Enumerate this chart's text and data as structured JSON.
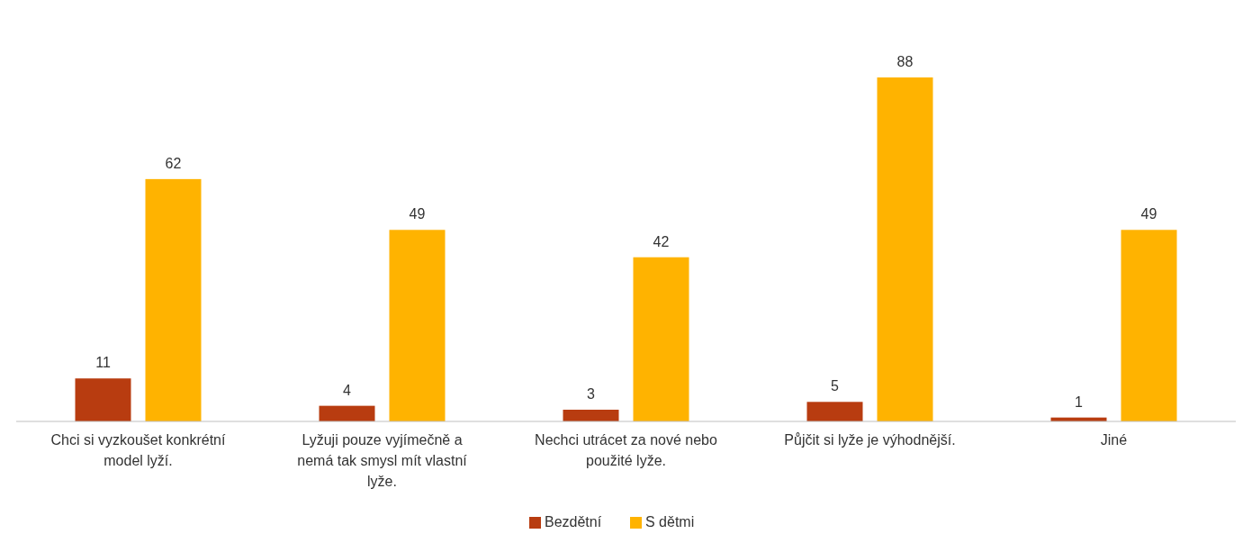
{
  "chart_data": {
    "type": "bar",
    "categories": [
      "Chci si vyzkoušet konkrétní model lyží.",
      "Lyžuji pouze vyjímečně a nemá tak smysl mít vlastní lyže.",
      "Nechci utrácet za nové nebo použité lyže.",
      "Půjčit si lyže je výhodnější.",
      "Jiné"
    ],
    "series": [
      {
        "name": "Bezdětní",
        "color": "#b83c10",
        "values": [
          11,
          4,
          3,
          5,
          1
        ]
      },
      {
        "name": "S dětmi",
        "color": "#ffb300",
        "values": [
          62,
          49,
          42,
          88,
          49
        ]
      }
    ],
    "data_labels": true,
    "legend": "bottom",
    "grid": false
  }
}
